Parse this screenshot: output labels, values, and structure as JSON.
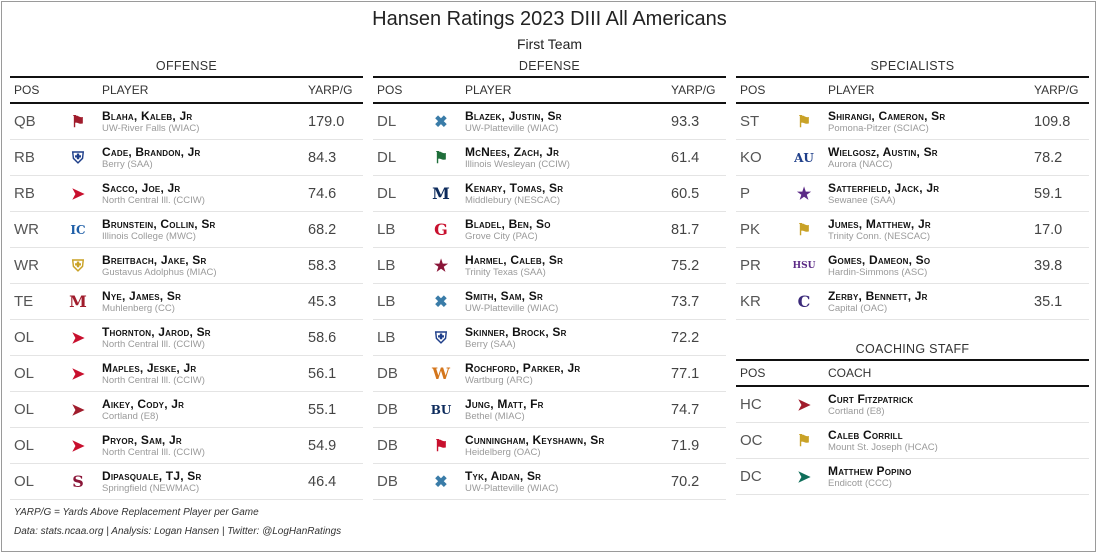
{
  "title": "Hansen Ratings 2023 DIII All Americans",
  "subtitle": "First Team",
  "headers": {
    "pos": "POS",
    "player": "PLAYER",
    "yarp": "YARP/G",
    "coach": "COACH"
  },
  "offense": {
    "label": "OFFENSE",
    "rows": [
      {
        "pos": "QB",
        "name": "Blaha, Kaleb, Jr",
        "school": "UW-River Falls (WIAC)",
        "yarp": "179.0",
        "logo": "falcon-icon",
        "color": "#a01c2c"
      },
      {
        "pos": "RB",
        "name": "Cade, Brandon, Jr",
        "school": "Berry (SAA)",
        "yarp": "84.3",
        "logo": "viking-icon",
        "color": "#1f3f8a"
      },
      {
        "pos": "RB",
        "name": "Sacco, Joe, Jr",
        "school": "North Central Ill. (CCIW)",
        "yarp": "74.6",
        "logo": "cardinal-icon",
        "color": "#c8102e"
      },
      {
        "pos": "WR",
        "name": "Brunstein, Collin, Sr",
        "school": "Illinois College (MWC)",
        "yarp": "68.2",
        "logo": "ic-monogram-icon",
        "color": "#1f5fa8"
      },
      {
        "pos": "WR",
        "name": "Breitbach, Jake, Sr",
        "school": "Gustavus Adolphus (MIAC)",
        "yarp": "58.3",
        "logo": "shield-icon",
        "color": "#c9a227"
      },
      {
        "pos": "TE",
        "name": "Nye, James, Sr",
        "school": "Muhlenberg (CC)",
        "yarp": "45.3",
        "logo": "m-script-icon",
        "color": "#a01c2c"
      },
      {
        "pos": "OL",
        "name": "Thornton, Jarod, Sr",
        "school": "North Central Ill. (CCIW)",
        "yarp": "58.6",
        "logo": "cardinal-icon",
        "color": "#c8102e"
      },
      {
        "pos": "OL",
        "name": "Maples, Jeske, Jr",
        "school": "North Central Ill. (CCIW)",
        "yarp": "56.1",
        "logo": "cardinal-icon",
        "color": "#c8102e"
      },
      {
        "pos": "OL",
        "name": "Aikey, Cody, Jr",
        "school": "Cortland (E8)",
        "yarp": "55.1",
        "logo": "red-dragon-icon",
        "color": "#a01c2c"
      },
      {
        "pos": "OL",
        "name": "Pryor, Sam, Jr",
        "school": "North Central Ill. (CCIW)",
        "yarp": "54.9",
        "logo": "cardinal-icon",
        "color": "#c8102e"
      },
      {
        "pos": "OL",
        "name": "Dipasquale, TJ, Sr",
        "school": "Springfield (NEWMAC)",
        "yarp": "46.4",
        "logo": "s-block-icon",
        "color": "#8a1538"
      }
    ]
  },
  "defense": {
    "label": "DEFENSE",
    "rows": [
      {
        "pos": "DL",
        "name": "Blazek, Justin, Sr",
        "school": "UW-Platteville (WIAC)",
        "yarp": "93.3",
        "logo": "pick-axes-icon",
        "color": "#3a7ca8"
      },
      {
        "pos": "DL",
        "name": "McNees, Zach, Jr",
        "school": "Illinois Wesleyan (CCIW)",
        "yarp": "61.4",
        "logo": "titan-helmet-icon",
        "color": "#1f6e3a"
      },
      {
        "pos": "DL",
        "name": "Kenary, Tomas, Sr",
        "school": "Middlebury (NESCAC)",
        "yarp": "60.5",
        "logo": "m-block-icon",
        "color": "#0d2b5c"
      },
      {
        "pos": "LB",
        "name": "Bladel, Ben, So",
        "school": "Grove City (PAC)",
        "yarp": "81.7",
        "logo": "g-block-icon",
        "color": "#c8102e"
      },
      {
        "pos": "LB",
        "name": "Harmel, Caleb, Sr",
        "school": "Trinity Texas (SAA)",
        "yarp": "75.2",
        "logo": "tiger-icon",
        "color": "#8a1538"
      },
      {
        "pos": "LB",
        "name": "Smith, Sam, Sr",
        "school": "UW-Platteville (WIAC)",
        "yarp": "73.7",
        "logo": "pick-axes-icon",
        "color": "#3a7ca8"
      },
      {
        "pos": "LB",
        "name": "Skinner, Brock, Sr",
        "school": "Berry (SAA)",
        "yarp": "72.2",
        "logo": "viking-icon",
        "color": "#1f3f8a"
      },
      {
        "pos": "DB",
        "name": "Rochford, Parker, Jr",
        "school": "Wartburg (ARC)",
        "yarp": "77.1",
        "logo": "w-circle-icon",
        "color": "#d4761c"
      },
      {
        "pos": "DB",
        "name": "Jung, Matt, Fr",
        "school": "Bethel (MIAC)",
        "yarp": "74.7",
        "logo": "bu-monogram-icon",
        "color": "#0d2b5c"
      },
      {
        "pos": "DB",
        "name": "Cunningham, Keyshawn, Sr",
        "school": "Heidelberg (OAC)",
        "yarp": "71.9",
        "logo": "student-prince-icon",
        "color": "#c8102e"
      },
      {
        "pos": "DB",
        "name": "Tyk, Aidan, Sr",
        "school": "UW-Platteville (WIAC)",
        "yarp": "70.2",
        "logo": "pick-axes-icon",
        "color": "#3a7ca8"
      }
    ]
  },
  "specialists": {
    "label": "SPECIALISTS",
    "rows": [
      {
        "pos": "ST",
        "name": "Shirangi, Cameron, Sr",
        "school": "Pomona-Pitzer (SCIAC)",
        "yarp": "109.8",
        "logo": "sagehen-icon",
        "color": "#c9a227"
      },
      {
        "pos": "KO",
        "name": "Wielgosz, Austin, Sr",
        "school": "Aurora (NACC)",
        "yarp": "78.2",
        "logo": "au-monogram-icon",
        "color": "#1f3f8a"
      },
      {
        "pos": "P",
        "name": "Satterfield, Jack, Jr",
        "school": "Sewanee (SAA)",
        "yarp": "59.1",
        "logo": "tiger-face-icon",
        "color": "#5b2a86"
      },
      {
        "pos": "PK",
        "name": "Jumes, Matthew, Jr",
        "school": "Trinity Conn. (NESCAC)",
        "yarp": "17.0",
        "logo": "bantam-icon",
        "color": "#c9a227"
      },
      {
        "pos": "PR",
        "name": "Gomes, Dameon, So",
        "school": "Hardin-Simmons (ASC)",
        "yarp": "39.8",
        "logo": "hsu-wordmark-icon",
        "color": "#5b2a86"
      },
      {
        "pos": "KR",
        "name": "Zerby, Bennett, Jr",
        "school": "Capital (OAC)",
        "yarp": "35.1",
        "logo": "c-block-icon",
        "color": "#3b2a7a"
      }
    ]
  },
  "coaching": {
    "label": "COACHING STAFF",
    "rows": [
      {
        "pos": "HC",
        "name": "Curt Fitzpatrick",
        "school": "Cortland (E8)",
        "logo": "red-dragon-icon",
        "color": "#a01c2c"
      },
      {
        "pos": "OC",
        "name": "Caleb Corrill",
        "school": "Mount St. Joseph (HCAC)",
        "logo": "lion-icon",
        "color": "#c9a227"
      },
      {
        "pos": "DC",
        "name": "Matthew Popino",
        "school": "Endicott (CCC)",
        "logo": "gull-icon",
        "color": "#0f6e5a"
      }
    ]
  },
  "footnotes": {
    "yarp_def": "YARP/G = Yards Above Replacement Player per Game",
    "source": "Data: stats.ncaa.org | Analysis: Logan Hansen | Twitter: @LogHanRatings"
  }
}
